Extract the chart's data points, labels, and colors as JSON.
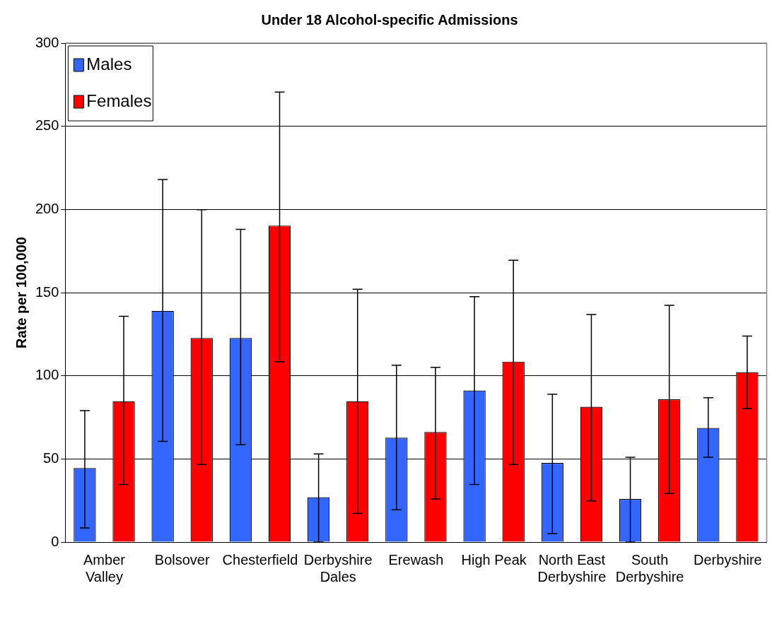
{
  "chart_data": {
    "type": "bar",
    "title": "Under 18 Alcohol-specific Admissions",
    "ylabel": "Rate per 100,000",
    "categories": [
      "Amber\nValley",
      "Bolsover",
      "Chesterfield",
      "Derbyshire\nDales",
      "Erewash",
      "High Peak",
      "North East\nDerbyshire",
      "South\nDerbyshire",
      "Derbyshire"
    ],
    "series": [
      {
        "name": "Males",
        "color": "#3366ff",
        "values": [
          44.5,
          139,
          122.7,
          27,
          62.8,
          91.1,
          47.6,
          25.9,
          68.6
        ],
        "errors": [
          [
            8.5,
            79
          ],
          [
            60.5,
            218
          ],
          [
            58.5,
            188
          ],
          [
            0,
            53
          ],
          [
            19.4,
            106.3
          ],
          [
            34.6,
            147.6
          ],
          [
            5.1,
            88.9
          ],
          [
            0,
            51
          ],
          [
            51,
            86.8
          ]
        ]
      },
      {
        "name": "Females",
        "color": "#ff0000",
        "values": [
          84.6,
          122.7,
          190.3,
          84.6,
          66.2,
          108.5,
          81.4,
          85.8,
          102.2
        ],
        "errors": [
          [
            34.6,
            135.8
          ],
          [
            46.6,
            199.8
          ],
          [
            108.5,
            270.6
          ],
          [
            17.2,
            152
          ],
          [
            25.9,
            105.1
          ],
          [
            46.6,
            169.4
          ],
          [
            24.7,
            136.8
          ],
          [
            29.2,
            142.3
          ],
          [
            80.2,
            123.9
          ]
        ]
      }
    ],
    "ylim": [
      0,
      300
    ],
    "yticks": [
      0,
      50,
      100,
      150,
      200,
      250,
      300
    ],
    "grid": "y",
    "legend": "top left"
  }
}
